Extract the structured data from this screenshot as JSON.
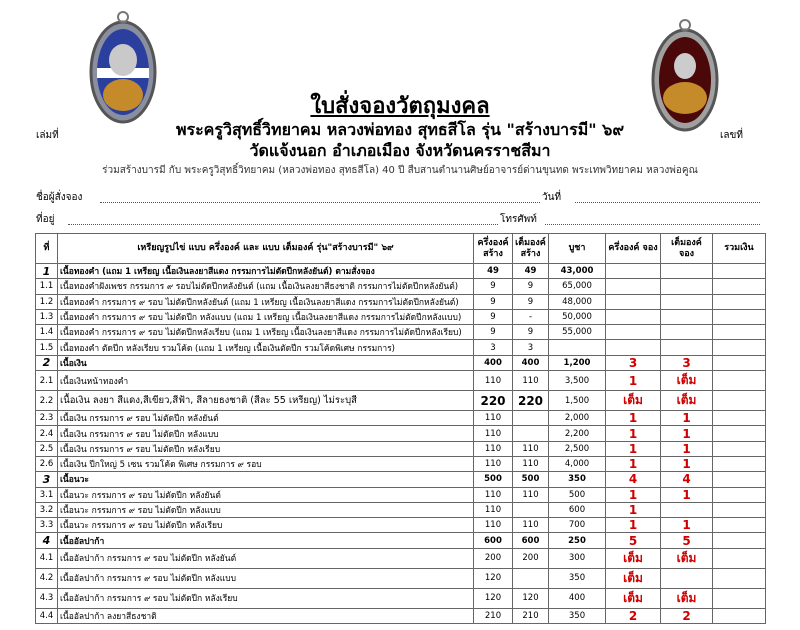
{
  "header": {
    "book_no": "เล่มที่",
    "doc_no": "เลขที่",
    "title": "ใบสั่งจองวัตถุมงคล",
    "line1": "พระครูวิสุทธิ์วิทยาคม  หลวงพ่อทอง สุทธสีโล  รุ่น \"สร้างบารมี\" ๖๙",
    "line2": "วัดแจ้งนอก  อำเภอเมือง  จังหวัดนครราชสีมา",
    "line3": "ร่วมสร้างบารมี กับ พระครูวิสุทธิ์วิทยาคม (หลวงพ่อทอง สุทธสีโล) 40 ปี  สืบสานตำนานศิษย์อาจารย์ด่านขุนทด พระเทพวิทยาคม หลวงพ่อคูณ"
  },
  "form": {
    "name": "ชื่อผู้สั่งจอง",
    "date": "วันที่",
    "address": "ที่อยู่",
    "phone": "โทรศัพท์"
  },
  "table": {
    "columns": [
      "ที่",
      "เหรียญรูปไข่ แบบ ครึ่งองค์ และ แบบ เต็มองค์ รุ่น\"สร้างบารมี\" ๖๙",
      "ครึ่งองค์ สร้าง",
      "เต็มองค์ สร้าง",
      "บูชา",
      "ครึ่งองค์ จอง",
      "เต็มองค์ จอง",
      "รวมเงิน"
    ],
    "rows": [
      [
        "1",
        "เนื้อทองคำ (แถม 1 เหรียญ เนื้อเงินลงยาสีแดง กรรมการไม่ตัดปีกหลังยันต์) ตามสั่งจอง",
        "49",
        "49",
        "43,000",
        null,
        null,
        null
      ],
      [
        "1.1",
        "เนื้อทองคำฝังเพชร กรรมการ ๙ รอบไม่ตัดปีกหลังยันต์ (แถม เนื้อเงินลงยาสีธงชาติ กรรมการไม่ตัดปีกหลังยันต์)",
        "9",
        "9",
        "65,000",
        null,
        null,
        null
      ],
      [
        "1.2",
        "เนื้อทองคำ กรรมการ ๙ รอบ ไม่ตัดปีกหลังยันต์ (แถม 1 เหรียญ เนื้อเงินลงยาสีแดง กรรมการไม่ตัดปีกหลังยันต์)",
        "9",
        "9",
        "48,000",
        null,
        null,
        null
      ],
      [
        "1.3",
        "เนื้อทองคำ กรรมการ ๙ รอบ ไม่ตัดปีก หลังแบบ (แถม 1 เหรียญ เนื้อเงินลงยาสีแดง กรรมการไม่ตัดปีกหลังแบบ)",
        "9",
        "-",
        "50,000",
        null,
        null,
        null
      ],
      [
        "1.4",
        "เนื้อทองคำ กรรมการ ๙ รอบ ไม่ตัดปีกหลังเรียบ (แถม 1 เหรียญ เนื้อเงินลงยาสีแดง กรรมการไม่ตัดปีกหลังเรียบ)",
        "9",
        "9",
        "55,000",
        null,
        null,
        null
      ],
      [
        "1.5",
        "เนื้อทองคำ ตัดปีก หลังเรียบ รวมโค้ด (แถม 1 เหรียญ เนื้อเงินตัดปีก รวมโค้ดพิเศษ กรรมการ)",
        "3",
        "3",
        null,
        null,
        null,
        null
      ],
      [
        "2",
        "เนื้อเงิน",
        "400",
        "400",
        "1,200",
        "3",
        "3",
        null
      ],
      [
        "2.1",
        "เนื้อเงินหน้าทองคำ",
        "110",
        "110",
        "3,500",
        "1",
        "เต็ม",
        null
      ],
      [
        "2.2",
        "เนื้อเงิน ลงยา สีแดง,สีเขียว,สีฟ้า, สีลายธงชาติ (สีละ 55 เหรียญ) ไม่ระบุสี",
        "220",
        "220",
        "1,500",
        "เต็ม",
        "เต็ม",
        null
      ],
      [
        "2.3",
        "เนื้อเงิน กรรมการ ๙ รอบ ไม่ตัดปีก หลังยันต์",
        "110",
        null,
        "2,000",
        "1",
        "1",
        null
      ],
      [
        "2.4",
        "เนื้อเงิน กรรมการ ๙ รอบ ไม่ตัดปีก หลังแบบ",
        "110",
        null,
        "2,200",
        "1",
        "1",
        null
      ],
      [
        "2.5",
        "เนื้อเงิน กรรมการ ๙ รอบ ไม่ตัดปีก หลังเรียบ",
        "110",
        "110",
        "2,500",
        "1",
        "1",
        null
      ],
      [
        "2.6",
        "เนื้อเงิน ปีกใหญ่ 5 เซน รวมโค้ด พิเศษ  กรรมการ ๙ รอบ",
        "110",
        "110",
        "4,000",
        "1",
        "1",
        null
      ],
      [
        "3",
        "เนื้อนวะ",
        "500",
        "500",
        "350",
        "4",
        "4",
        null
      ],
      [
        "3.1",
        "เนื้อนวะ กรรมการ ๙ รอบ ไม่ตัดปีก หลังยันต์",
        "110",
        "110",
        "500",
        "1",
        "1",
        null
      ],
      [
        "3.2",
        "เนื้อนวะ กรรมการ ๙ รอบ ไม่ตัดปีก หลังแบบ",
        "110",
        null,
        "600",
        "1",
        null,
        null
      ],
      [
        "3.3",
        "เนื้อนวะ กรรมการ ๙ รอบ ไม่ตัดปีก หลังเรียบ",
        "110",
        "110",
        "700",
        "1",
        "1",
        null
      ],
      [
        "4",
        "เนื้ออัลปาก้า",
        "600",
        "600",
        "250",
        "5",
        "5",
        null
      ],
      [
        "4.1",
        "เนื้ออัลปาก้า กรรมการ ๙ รอบ ไม่ตัดปีก หลังยันต์",
        "200",
        "200",
        "300",
        "เต็ม",
        "เต็ม",
        null
      ],
      [
        "4.2",
        "เนื้ออัลปาก้า กรรมการ ๙ รอบ ไม่ตัดปีก หลังแบบ",
        "120",
        null,
        "350",
        "เต็ม",
        null,
        null
      ],
      [
        "4.3",
        "เนื้ออัลปาก้า กรรมการ ๙ รอบ ไม่ตัดปีก หลังเรียบ",
        "120",
        "120",
        "400",
        "เต็ม",
        "เต็ม",
        null
      ],
      [
        "4.4",
        "เนื้ออัลปาก้า ลงยาสีธงชาติ",
        "210",
        "210",
        "350",
        "2",
        "2",
        null
      ]
    ]
  }
}
